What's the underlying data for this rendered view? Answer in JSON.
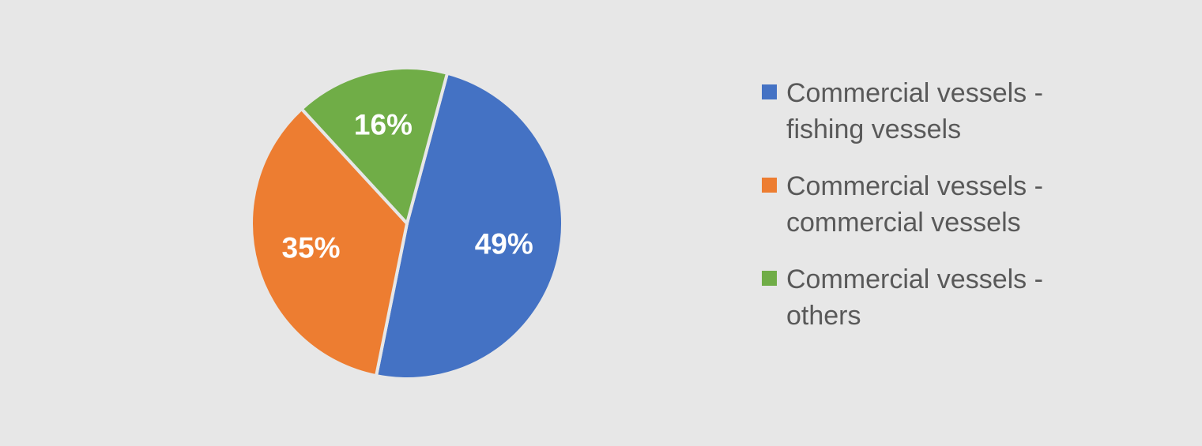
{
  "chart_data": {
    "type": "pie",
    "categories": [
      "Commercial vessels - fishing vessels",
      "Commercial vessels - commercial vessels",
      "Commercial vessels - others"
    ],
    "values": [
      49,
      35,
      16
    ],
    "value_labels": [
      "49%",
      "35%",
      "16%"
    ],
    "colors": [
      "#4472c4",
      "#ed7d31",
      "#70ad47"
    ],
    "legend": "right"
  }
}
